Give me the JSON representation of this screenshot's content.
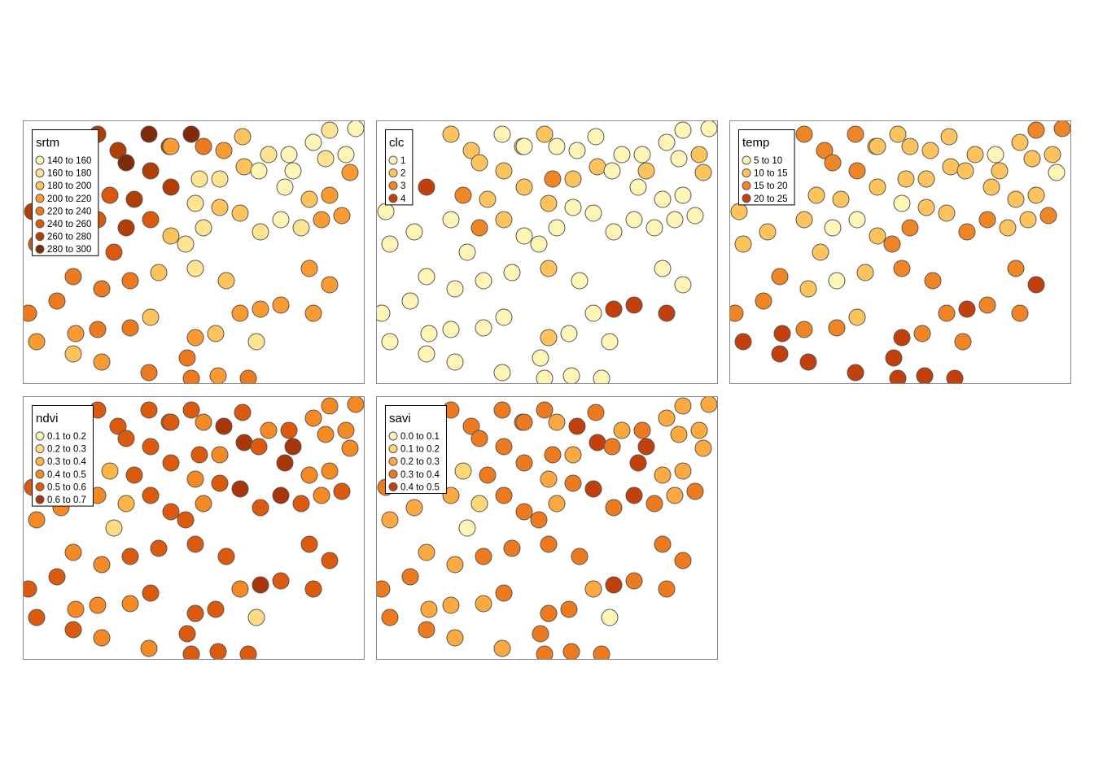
{
  "xlim": [
    0,
    420
  ],
  "ylim": [
    0,
    324
  ],
  "points": {
    "x": [
      92,
      117,
      155,
      180,
      207,
      222,
      247,
      270,
      302,
      327,
      357,
      377,
      409,
      397,
      402,
      127,
      157,
      182,
      217,
      242,
      272,
      290,
      322,
      352,
      377,
      392,
      22,
      32,
      62,
      107,
      137,
      212,
      242,
      267,
      292,
      317,
      342,
      367,
      12,
      47,
      92,
      127,
      157,
      182,
      222,
      200,
      112,
      17,
      62,
      97,
      132,
      167,
      212,
      250,
      292,
      317,
      352,
      377,
      7,
      42,
      65,
      92,
      132,
      157,
      212,
      237,
      267,
      287,
      17,
      62,
      97,
      155,
      207,
      240,
      277,
      357,
      202,
      182,
      332,
      372
    ],
    "y": [
      17,
      37,
      17,
      32,
      17,
      32,
      37,
      20,
      42,
      42,
      27,
      12,
      10,
      42,
      64,
      52,
      62,
      82,
      72,
      72,
      57,
      62,
      82,
      97,
      92,
      117,
      27,
      62,
      82,
      92,
      97,
      102,
      107,
      114,
      137,
      122,
      132,
      122,
      112,
      137,
      122,
      132,
      122,
      142,
      132,
      152,
      162,
      152,
      192,
      207,
      197,
      187,
      182,
      197,
      232,
      227,
      182,
      202,
      237,
      222,
      262,
      257,
      255,
      242,
      267,
      262,
      237,
      272,
      272,
      287,
      297,
      310,
      317,
      314,
      317,
      237,
      292,
      32,
      62,
      47
    ]
  },
  "maps": [
    {
      "title": "srtm",
      "labels": [
        "140 to 160",
        "160 to 180",
        "180 to 200",
        "200 to 220",
        "220 to 240",
        "240 to 260",
        "260 to 280",
        "280 to 300"
      ],
      "colors": [
        "#FFF5B6",
        "#FEE490",
        "#FDC35C",
        "#F99A33",
        "#EE7A1F",
        "#D95A0E",
        "#B03E05",
        "#7F2A08"
      ],
      "classes": [
        6,
        6,
        7,
        6,
        7,
        4,
        3,
        2,
        1,
        0,
        0,
        1,
        0,
        0,
        3,
        7,
        6,
        6,
        1,
        1,
        2,
        0,
        0,
        2,
        3,
        3,
        6,
        5,
        5,
        5,
        6,
        1,
        2,
        2,
        1,
        0,
        1,
        3,
        6,
        5,
        5,
        6,
        5,
        2,
        1,
        1,
        5,
        5,
        4,
        4,
        4,
        2,
        1,
        2,
        3,
        3,
        3,
        3,
        4,
        4,
        3,
        4,
        4,
        2,
        3,
        2,
        3,
        1,
        3,
        2,
        3,
        4,
        4,
        3,
        4,
        3,
        4,
        3,
        0,
        1
      ]
    },
    {
      "title": "clc",
      "labels": [
        "1",
        "2",
        "3",
        "4"
      ],
      "colors": [
        "#FFF5B6",
        "#FDC35C",
        "#F08525",
        "#C2400B"
      ],
      "classes": [
        1,
        1,
        0,
        1,
        1,
        0,
        0,
        0,
        0,
        0,
        0,
        0,
        0,
        1,
        1,
        1,
        1,
        1,
        2,
        1,
        1,
        0,
        0,
        0,
        0,
        0,
        0,
        1,
        3,
        2,
        1,
        1,
        0,
        0,
        0,
        0,
        0,
        0,
        0,
        0,
        0,
        2,
        1,
        0,
        0,
        0,
        0,
        0,
        0,
        0,
        0,
        0,
        1,
        0,
        3,
        3,
        0,
        0,
        0,
        0,
        0,
        0,
        0,
        0,
        1,
        0,
        0,
        0,
        0,
        0,
        0,
        0,
        0,
        0,
        0,
        3,
        0,
        0,
        1,
        0
      ]
    },
    {
      "title": "temp",
      "labels": [
        "5 to 10",
        "10 to 15",
        "15 to 20",
        "20 to 25"
      ],
      "colors": [
        "#FFF5B6",
        "#FDC35C",
        "#F08525",
        "#C2400B"
      ],
      "classes": [
        2,
        2,
        2,
        1,
        1,
        1,
        1,
        1,
        1,
        0,
        1,
        2,
        2,
        1,
        0,
        2,
        2,
        1,
        1,
        1,
        1,
        1,
        1,
        1,
        1,
        2,
        2,
        2,
        1,
        1,
        1,
        0,
        1,
        1,
        2,
        2,
        1,
        1,
        1,
        1,
        1,
        0,
        0,
        1,
        2,
        2,
        1,
        1,
        2,
        1,
        0,
        1,
        2,
        2,
        3,
        2,
        2,
        3,
        2,
        2,
        3,
        2,
        2,
        1,
        3,
        2,
        2,
        2,
        3,
        3,
        3,
        3,
        3,
        3,
        3,
        2,
        3,
        1,
        1,
        1
      ]
    },
    {
      "title": "ndvi",
      "labels": [
        "0.1 to 0.2",
        "0.2 to 0.3",
        "0.3 to 0.4",
        "0.4 to 0.5",
        "0.5 to 0.6",
        "0.6 to 0.7"
      ],
      "colors": [
        "#FFF5B6",
        "#FEDC84",
        "#FDB545",
        "#F58A25",
        "#DC5A0E",
        "#A8360A"
      ],
      "classes": [
        4,
        4,
        4,
        4,
        4,
        3,
        5,
        4,
        3,
        4,
        3,
        3,
        3,
        3,
        3,
        4,
        4,
        4,
        4,
        3,
        5,
        4,
        5,
        3,
        3,
        4,
        4,
        3,
        1,
        2,
        4,
        3,
        4,
        5,
        4,
        5,
        4,
        3,
        4,
        3,
        3,
        2,
        4,
        4,
        3,
        4,
        1,
        3,
        3,
        3,
        4,
        4,
        4,
        4,
        5,
        4,
        4,
        4,
        4,
        4,
        3,
        3,
        3,
        4,
        4,
        4,
        3,
        1,
        4,
        4,
        3,
        3,
        4,
        4,
        4,
        4,
        4,
        4,
        5,
        3
      ]
    },
    {
      "title": "savi",
      "labels": [
        "0.0 to 0.1",
        "0.1 to 0.2",
        "0.2 to 0.3",
        "0.3 to 0.4",
        "0.4 to 0.5"
      ],
      "colors": [
        "#FFF5B6",
        "#FED777",
        "#FBA940",
        "#EE7A1F",
        "#C2400B"
      ],
      "classes": [
        3,
        3,
        3,
        3,
        3,
        2,
        4,
        3,
        2,
        3,
        2,
        2,
        2,
        2,
        2,
        3,
        3,
        3,
        3,
        2,
        4,
        3,
        4,
        2,
        2,
        3,
        3,
        2,
        0,
        1,
        3,
        2,
        3,
        4,
        3,
        4,
        3,
        2,
        3,
        2,
        2,
        1,
        3,
        3,
        2,
        3,
        0,
        2,
        2,
        2,
        3,
        3,
        3,
        3,
        4,
        3,
        3,
        3,
        3,
        3,
        2,
        2,
        2,
        3,
        3,
        3,
        2,
        0,
        3,
        3,
        2,
        2,
        3,
        3,
        3,
        3,
        3,
        3,
        4,
        2
      ]
    }
  ]
}
